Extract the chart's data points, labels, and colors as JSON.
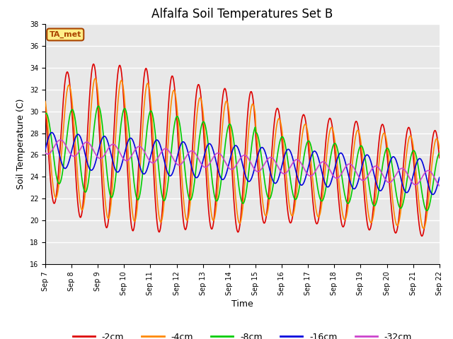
{
  "title": "Alfalfa Soil Temperatures Set B",
  "xlabel": "Time",
  "ylabel": "Soil Temperature (C)",
  "ylim": [
    16,
    38
  ],
  "yticks": [
    16,
    18,
    20,
    22,
    24,
    26,
    28,
    30,
    32,
    34,
    36,
    38
  ],
  "xtick_labels": [
    "Sep 7",
    "Sep 8",
    "Sep 9",
    "Sep 10",
    "Sep 11",
    "Sep 12",
    "Sep 13",
    "Sep 14",
    "Sep 15",
    "Sep 16",
    "Sep 17",
    "Sep 18",
    "Sep 19",
    "Sep 20",
    "Sep 21",
    "Sep 22"
  ],
  "series": [
    {
      "label": "-2cm",
      "color": "#dd0000",
      "lw": 1.2
    },
    {
      "label": "-4cm",
      "color": "#ff8800",
      "lw": 1.2
    },
    {
      "label": "-8cm",
      "color": "#00cc00",
      "lw": 1.2
    },
    {
      "label": "-16cm",
      "color": "#0000dd",
      "lw": 1.2
    },
    {
      "label": "-32cm",
      "color": "#cc44cc",
      "lw": 1.2
    }
  ],
  "annotation_text": "TA_met",
  "annotation_bg": "#ffee88",
  "annotation_border": "#aa4400",
  "plot_bg": "#e8e8e8",
  "fig_bg": "#ffffff",
  "title_fontsize": 12,
  "axis_fontsize": 9,
  "tick_fontsize": 7,
  "grid_color": "#ffffff",
  "grid_lw": 1.0
}
